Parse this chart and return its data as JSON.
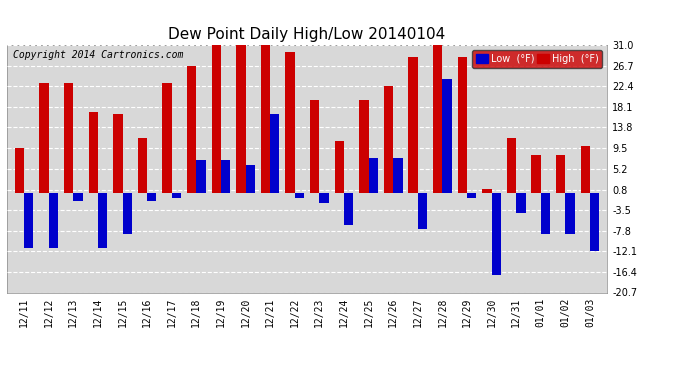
{
  "title": "Dew Point Daily High/Low 20140104",
  "copyright": "Copyright 2014 Cartronics.com",
  "labels": [
    "12/11",
    "12/12",
    "12/13",
    "12/14",
    "12/15",
    "12/16",
    "12/17",
    "12/18",
    "12/19",
    "12/20",
    "12/21",
    "12/22",
    "12/23",
    "12/24",
    "12/25",
    "12/26",
    "12/27",
    "12/28",
    "12/29",
    "12/30",
    "12/31",
    "01/01",
    "01/02",
    "01/03"
  ],
  "high_values": [
    9.5,
    23.0,
    23.0,
    17.0,
    16.5,
    11.5,
    23.0,
    26.7,
    31.0,
    31.0,
    31.0,
    29.5,
    19.5,
    11.0,
    19.5,
    22.4,
    28.5,
    31.0,
    28.5,
    1.0,
    11.5,
    8.0,
    8.0,
    10.0
  ],
  "low_values": [
    -11.5,
    -11.5,
    -1.5,
    -11.5,
    -8.5,
    -1.5,
    -1.0,
    7.0,
    7.0,
    6.0,
    16.5,
    -1.0,
    -2.0,
    -6.5,
    7.5,
    7.5,
    -7.5,
    24.0,
    -1.0,
    -17.0,
    -4.0,
    -8.5,
    -8.5,
    -12.0
  ],
  "high_color": "#cc0000",
  "low_color": "#0000cc",
  "ylim": [
    -20.7,
    31.0
  ],
  "yticks": [
    31.0,
    26.7,
    22.4,
    18.1,
    13.8,
    9.5,
    5.2,
    0.8,
    -3.5,
    -7.8,
    -12.1,
    -16.4,
    -20.7
  ],
  "background_color": "#ffffff",
  "plot_bg_color": "#d8d8d8",
  "grid_color": "#ffffff",
  "title_fontsize": 11,
  "copyright_fontsize": 7,
  "bar_width": 0.38
}
